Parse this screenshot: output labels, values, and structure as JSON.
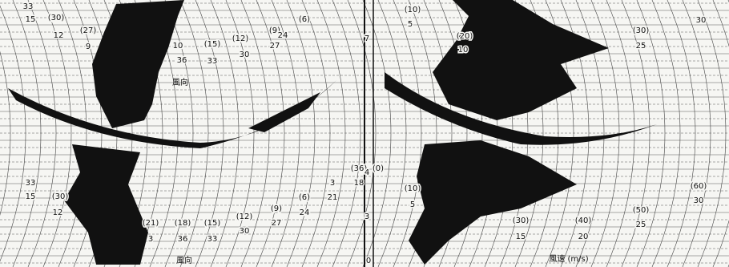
{
  "left_upper": [
    "33",
    "15",
    "(30)",
    "12",
    "(27)",
    "9",
    "(15)",
    "(12)",
    "(9)",
    "(6)",
    "24",
    "27",
    "30",
    "33",
    "36",
    "10"
  ],
  "left_lower": [
    "33",
    "15",
    "(30)",
    "12",
    "(21)",
    "3",
    "(18)",
    "36",
    "(15)",
    "33",
    "(12)",
    "30",
    "(9)",
    "27",
    "(6)",
    "24",
    "3",
    "21",
    "(36)",
    "18",
    "(0)"
  ],
  "right_upper": [
    "(10)",
    "5",
    "(20)",
    "10",
    "(30)",
    "25",
    "30"
  ],
  "right_lower": [
    "(10)",
    "5",
    "(30)",
    "15",
    "(40)",
    "20",
    "(50)",
    "25",
    "(60)",
    "30"
  ],
  "hours": [
    "7",
    "4",
    "3",
    "0"
  ],
  "labels": {
    "direction_upper": "風向",
    "direction_lower": "風向",
    "speed": "風速 (m/s)"
  }
}
